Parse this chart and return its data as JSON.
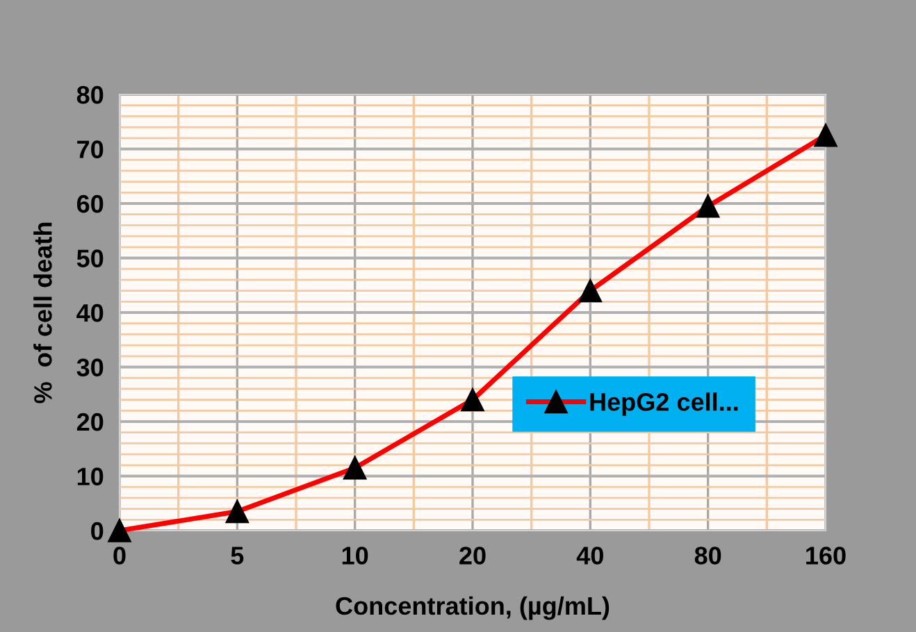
{
  "chart_data": {
    "type": "line",
    "xlabel": "Concentration, (µg/mL)",
    "ylabel": "%  of cell death",
    "categories": [
      "0",
      "5",
      "10",
      "20",
      "40",
      "80",
      "160"
    ],
    "series": [
      {
        "name": "HepG2 cell...",
        "color": "#ff0000",
        "values": [
          0,
          3.5,
          11.5,
          24,
          44,
          59.5,
          72.5
        ]
      }
    ],
    "ylim": [
      0,
      80
    ],
    "yticks": [
      0,
      {
        "value": 2,
        "label": null
      },
      {
        "value": 4,
        "label": null
      },
      {
        "value": 6,
        "label": null
      },
      {
        "value": 8,
        "label": null
      },
      10,
      {
        "value": 12,
        "label": null
      },
      {
        "value": 14,
        "label": null
      },
      {
        "value": 16,
        "label": null
      },
      {
        "value": 18,
        "label": null
      },
      20,
      {
        "value": 22,
        "label": null
      },
      {
        "value": 24,
        "label": null
      },
      {
        "value": 26,
        "label": null
      },
      {
        "value": 28,
        "label": null
      },
      30,
      {
        "value": 32,
        "label": null
      },
      {
        "value": 34,
        "label": null
      },
      {
        "value": 36,
        "label": null
      },
      {
        "value": 38,
        "label": null
      },
      40,
      {
        "value": 42,
        "label": null
      },
      {
        "value": 44,
        "label": null
      },
      {
        "value": 46,
        "label": null
      },
      {
        "value": 48,
        "label": null
      },
      50,
      {
        "value": 52,
        "label": null
      },
      {
        "value": 54,
        "label": null
      },
      {
        "value": 56,
        "label": null
      },
      {
        "value": 58,
        "label": null
      },
      60,
      {
        "value": 62,
        "label": null
      },
      {
        "value": 64,
        "label": null
      },
      {
        "value": 66,
        "label": null
      },
      {
        "value": 68,
        "label": null
      },
      70,
      {
        "value": 72,
        "label": null
      },
      {
        "value": 74,
        "label": null
      },
      {
        "value": 76,
        "label": null
      },
      {
        "value": 78,
        "label": null
      },
      80
    ],
    "grid": true,
    "legend": "bottom right",
    "marker": "triangle",
    "line_style": "solid"
  }
}
